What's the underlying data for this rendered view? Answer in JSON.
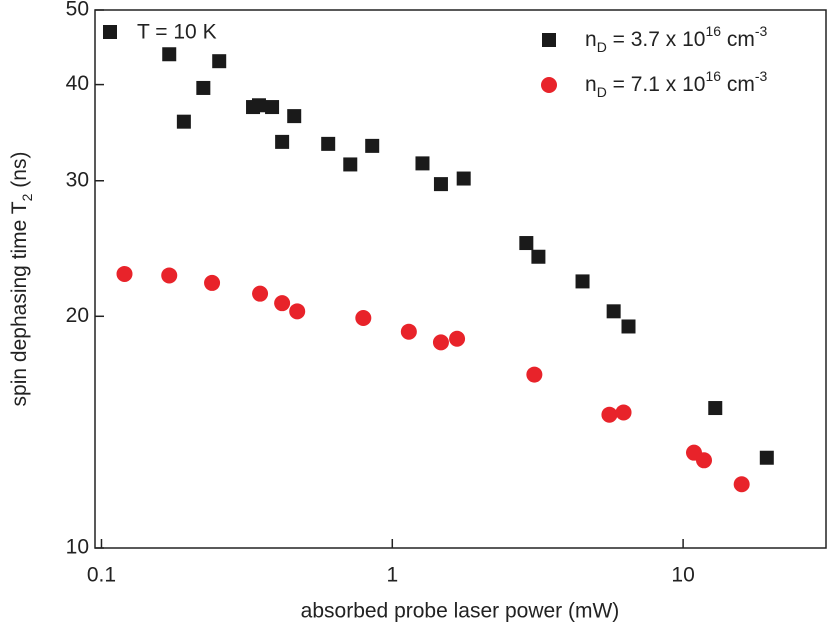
{
  "chart_data": {
    "type": "scatter",
    "x_label": "absorbed probe laser power (mW)",
    "y_label": [
      "spin dephasing time T",
      "2",
      " (ns)"
    ],
    "annotation": "T = 10 K",
    "xscale": "log",
    "yscale": "log",
    "xlim": [
      0.095,
      31
    ],
    "ylim": [
      10,
      50
    ],
    "xticks": [
      0.1,
      1,
      10
    ],
    "yticks": [
      10,
      20,
      30,
      40,
      50
    ],
    "legend": "upper right",
    "series": [
      {
        "name": [
          "n",
          "D",
          " = 3.7 x 10",
          "16",
          " cm",
          "-3"
        ],
        "color": "#1a1a1a",
        "marker": "square",
        "x": [
          0.171,
          0.192,
          0.224,
          0.254,
          0.332,
          0.348,
          0.386,
          0.418,
          0.46,
          0.602,
          0.717,
          0.853,
          1.27,
          1.47,
          1.76,
          2.89,
          3.18,
          4.51,
          5.77,
          6.49,
          12.9,
          19.4
        ],
        "values": [
          43.8,
          35.8,
          39.6,
          42.9,
          37.4,
          37.6,
          37.4,
          33.7,
          36.4,
          33.5,
          31.5,
          33.3,
          31.6,
          29.7,
          30.2,
          24.9,
          23.9,
          22.2,
          20.3,
          19.4,
          15.2,
          13.1
        ]
      },
      {
        "name": [
          "n",
          "D",
          " = 7.1 x 10",
          "16",
          " cm",
          "-3"
        ],
        "color": "#e8232a",
        "marker": "circle",
        "x": [
          0.12,
          0.171,
          0.24,
          0.351,
          0.418,
          0.471,
          0.795,
          1.14,
          1.47,
          1.67,
          3.08,
          5.58,
          6.24,
          10.9,
          11.8,
          15.9
        ],
        "values": [
          22.7,
          22.6,
          22.1,
          21.4,
          20.8,
          20.3,
          19.9,
          19.1,
          18.5,
          18.7,
          16.8,
          14.9,
          15.0,
          13.3,
          13.0,
          12.1
        ]
      }
    ]
  }
}
